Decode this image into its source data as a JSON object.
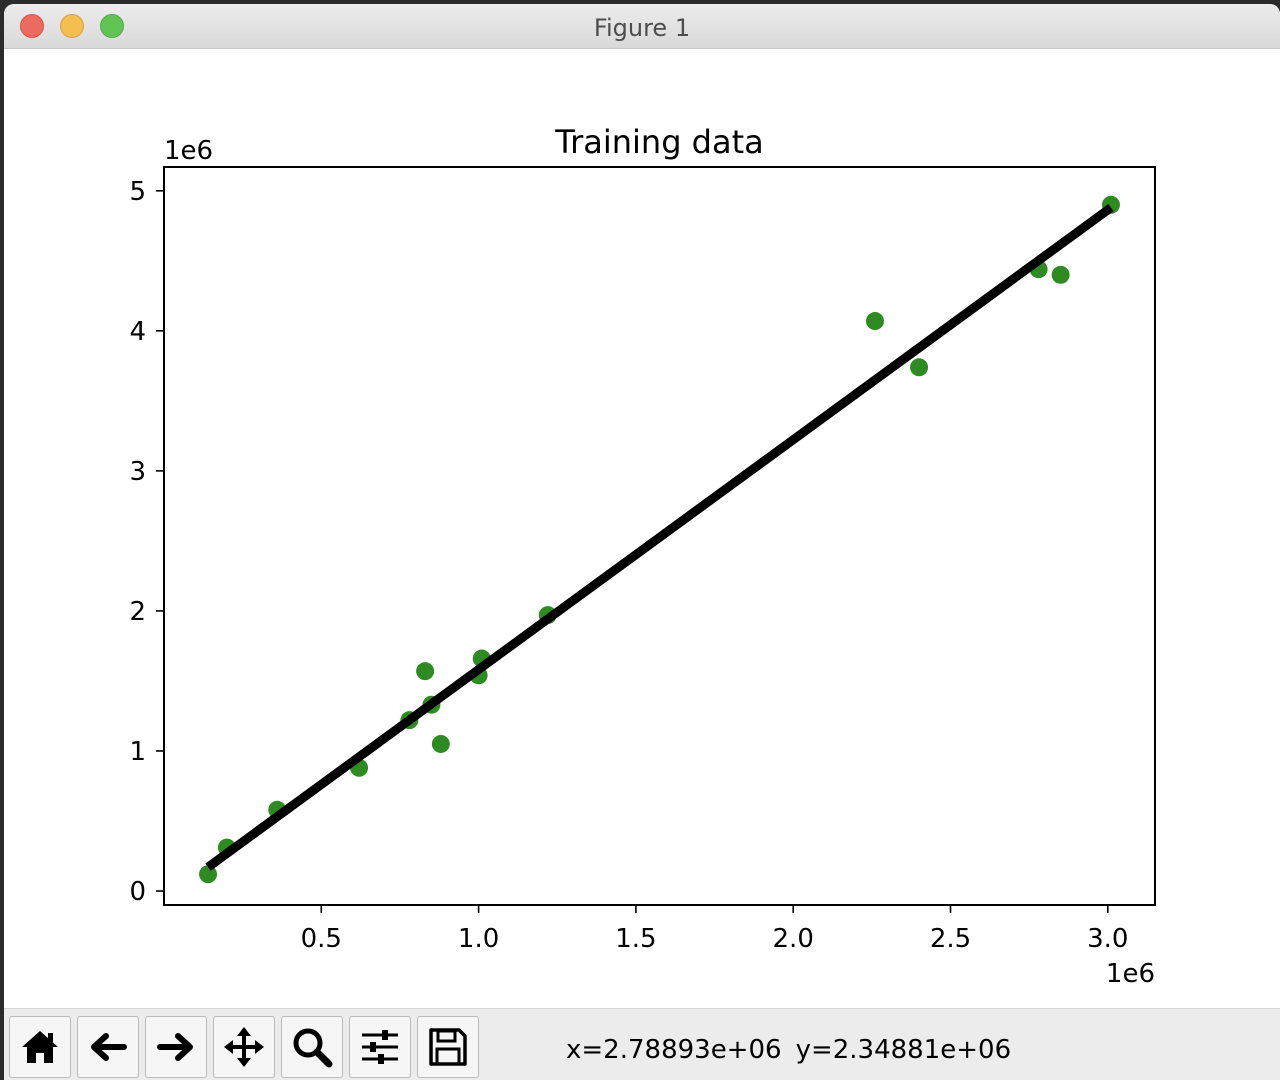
{
  "window": {
    "title": "Figure 1"
  },
  "toolbar": {
    "buttons": [
      {
        "name": "home",
        "icon": "home-icon"
      },
      {
        "name": "back",
        "icon": "arrow-left-icon"
      },
      {
        "name": "forward",
        "icon": "arrow-right-icon"
      },
      {
        "name": "pan",
        "icon": "move-icon"
      },
      {
        "name": "zoom",
        "icon": "magnifier-icon"
      },
      {
        "name": "configure",
        "icon": "sliders-icon"
      },
      {
        "name": "save",
        "icon": "floppy-icon"
      }
    ],
    "coord_x": "x=2.78893e+06",
    "coord_y": "y=2.34881e+06"
  },
  "chart_data": {
    "type": "scatter",
    "title": "Training data",
    "xlabel": "",
    "ylabel": "",
    "x_offset_label": "1e6",
    "y_offset_label": "1e6",
    "xlim": [
      0.0,
      3.15
    ],
    "ylim": [
      -0.1,
      5.17
    ],
    "xticks": [
      0.5,
      1.0,
      1.5,
      2.0,
      2.5,
      3.0
    ],
    "xtick_labels": [
      "0.5",
      "1.0",
      "1.5",
      "2.0",
      "2.5",
      "3.0"
    ],
    "yticks": [
      0,
      1,
      2,
      3,
      4,
      5
    ],
    "ytick_labels": [
      "0",
      "1",
      "2",
      "3",
      "4",
      "5"
    ],
    "grid": false,
    "point_color": "#2e8b22",
    "line_color": "#000000",
    "points": [
      {
        "x": 0.14,
        "y": 0.12
      },
      {
        "x": 0.2,
        "y": 0.31
      },
      {
        "x": 0.36,
        "y": 0.58
      },
      {
        "x": 0.62,
        "y": 0.88
      },
      {
        "x": 0.78,
        "y": 1.22
      },
      {
        "x": 0.83,
        "y": 1.57
      },
      {
        "x": 0.85,
        "y": 1.33
      },
      {
        "x": 0.88,
        "y": 1.05
      },
      {
        "x": 1.0,
        "y": 1.54
      },
      {
        "x": 1.01,
        "y": 1.66
      },
      {
        "x": 1.22,
        "y": 1.97
      },
      {
        "x": 2.26,
        "y": 4.07
      },
      {
        "x": 2.4,
        "y": 3.74
      },
      {
        "x": 2.78,
        "y": 4.44
      },
      {
        "x": 2.85,
        "y": 4.4
      },
      {
        "x": 3.01,
        "y": 4.9
      }
    ],
    "fit_line": [
      {
        "x": 0.14,
        "y": 0.17
      },
      {
        "x": 3.01,
        "y": 4.88
      }
    ]
  }
}
